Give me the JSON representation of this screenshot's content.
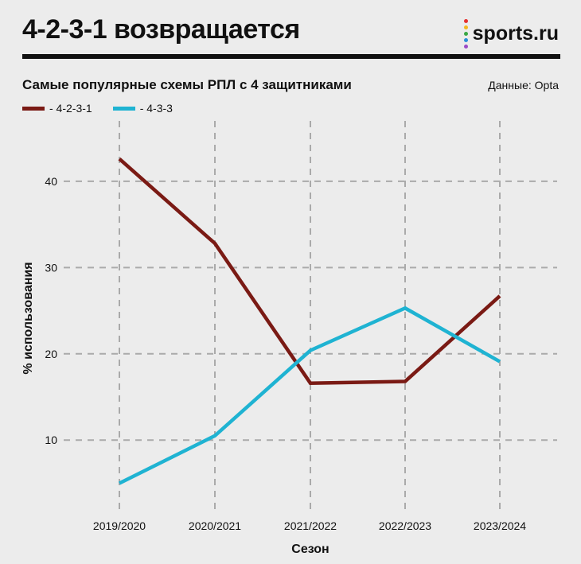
{
  "header": {
    "title": "4-2-3-1 возвращается",
    "brand": "sports.ru",
    "brand_dot_colors": [
      "#e5312f",
      "#f3b81f",
      "#3aa845",
      "#2b8fd8",
      "#9a4bc7"
    ]
  },
  "subtitle": "Самые популярные схемы РПЛ с 4 защитниками",
  "source": "Данные: Opta",
  "colors": {
    "background": "#ececec",
    "grid": "#aaaaaa"
  },
  "chart_data": {
    "type": "line",
    "title": "Самые популярные схемы РПЛ с 4 защитниками",
    "xlabel": "Сезон",
    "ylabel": "% использования",
    "categories": [
      "2019/2020",
      "2020/2021",
      "2021/2022",
      "2022/2023",
      "2023/2024"
    ],
    "ylim": [
      2,
      47
    ],
    "yticks": [
      10,
      20,
      30,
      40
    ],
    "grid": true,
    "legend_position": "top-left",
    "series": [
      {
        "name": "- 4-2-3-1",
        "color": "#7a1a14",
        "values": [
          42.6,
          32.8,
          16.6,
          16.8,
          26.7
        ]
      },
      {
        "name": "- 4-3-3",
        "color": "#1fb3d2",
        "values": [
          5.0,
          10.5,
          20.4,
          25.3,
          19.1
        ]
      }
    ]
  }
}
